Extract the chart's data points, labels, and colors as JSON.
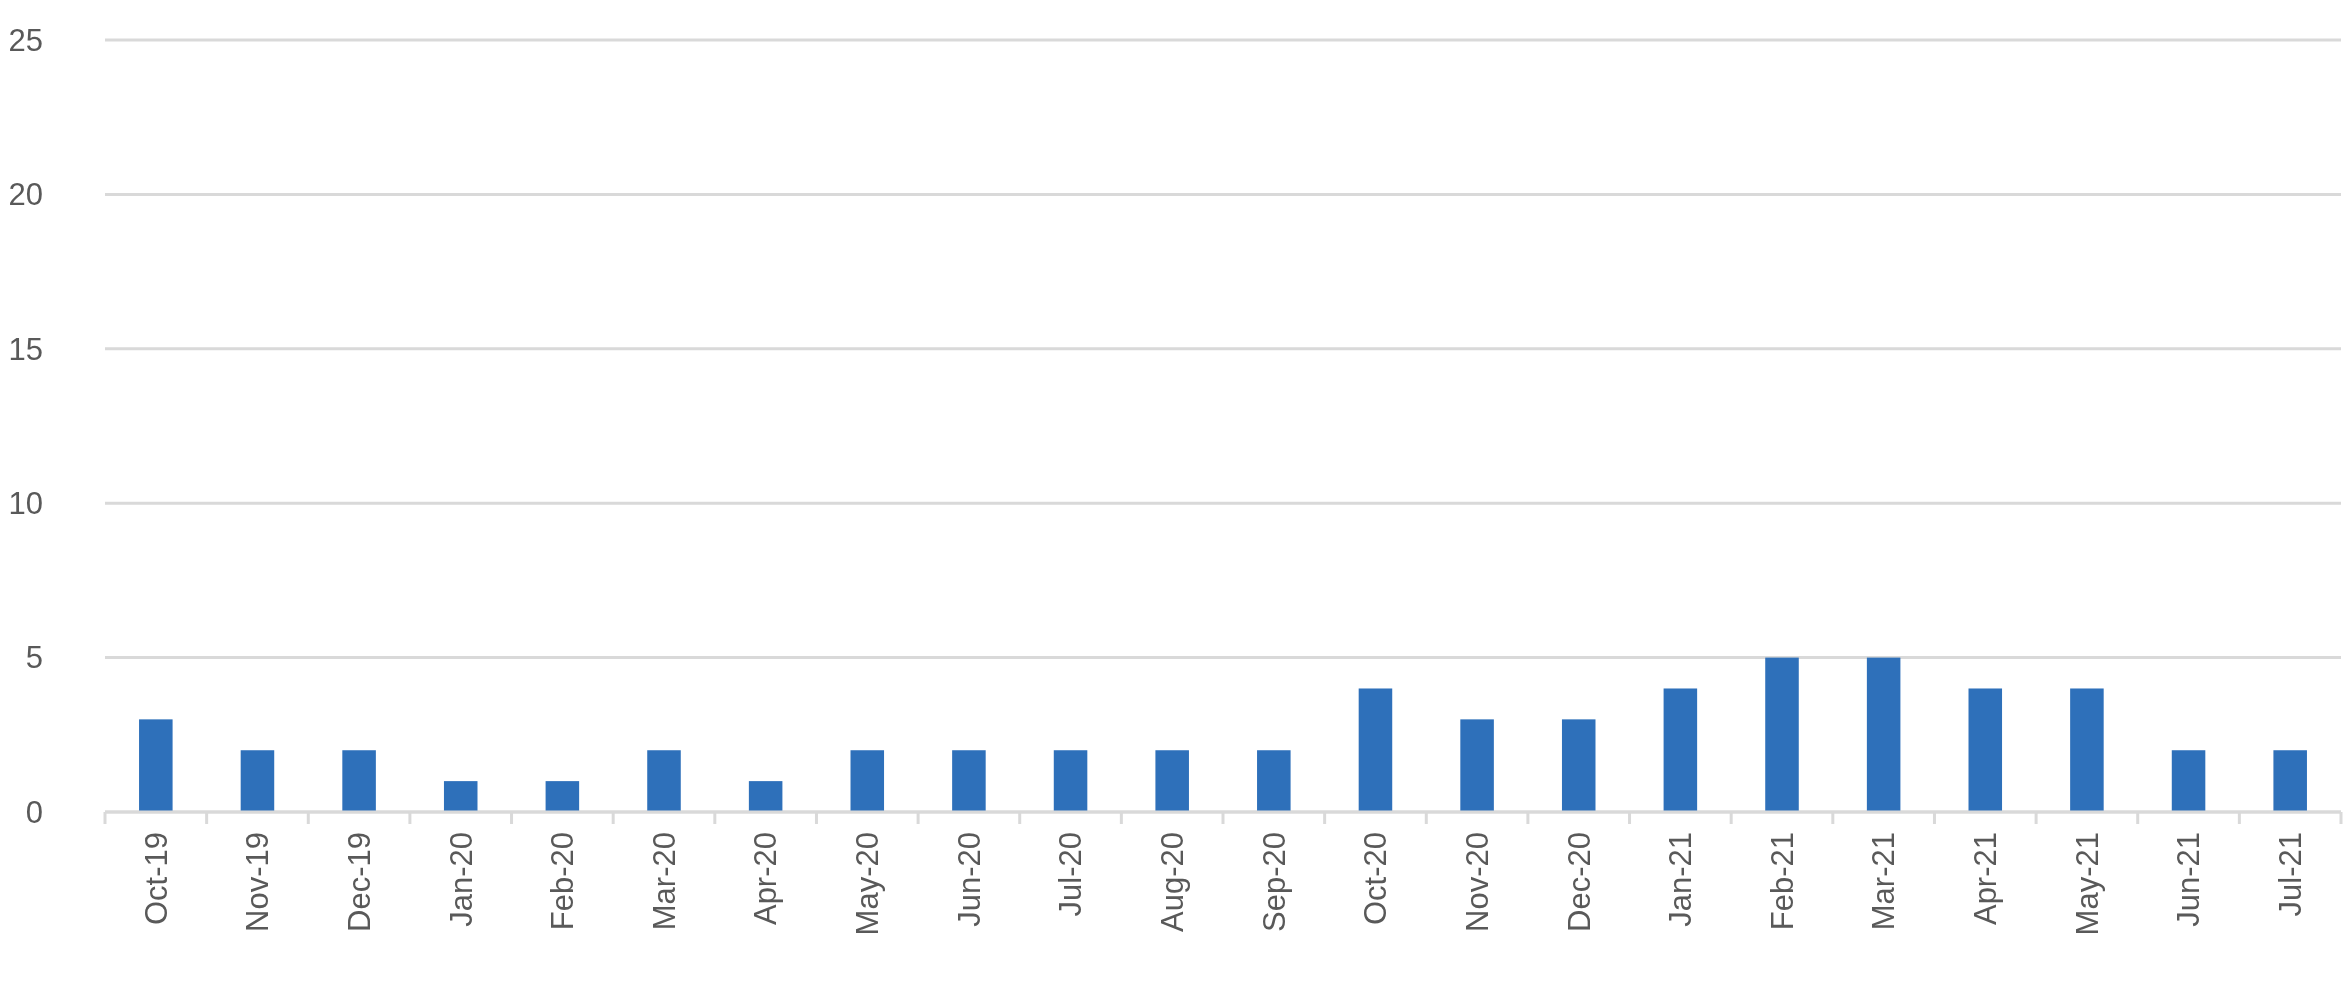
{
  "chart_data": {
    "type": "bar",
    "categories": [
      "Oct-19",
      "Nov-19",
      "Dec-19",
      "Jan-20",
      "Feb-20",
      "Mar-20",
      "Apr-20",
      "May-20",
      "Jun-20",
      "Jul-20",
      "Aug-20",
      "Sep-20",
      "Oct-20",
      "Nov-20",
      "Dec-20",
      "Jan-21",
      "Feb-21",
      "Mar-21",
      "Apr-21",
      "May-21",
      "Jun-21",
      "Jul-21"
    ],
    "values": [
      3,
      2,
      2,
      1,
      1,
      2,
      1,
      2,
      2,
      2,
      2,
      2,
      4,
      3,
      3,
      4,
      5,
      5,
      4,
      4,
      2,
      2
    ],
    "color": "#2e70ba",
    "ylim": [
      0,
      25
    ],
    "yticks": [
      0,
      5,
      10,
      15,
      20,
      25
    ],
    "grid": "y"
  }
}
